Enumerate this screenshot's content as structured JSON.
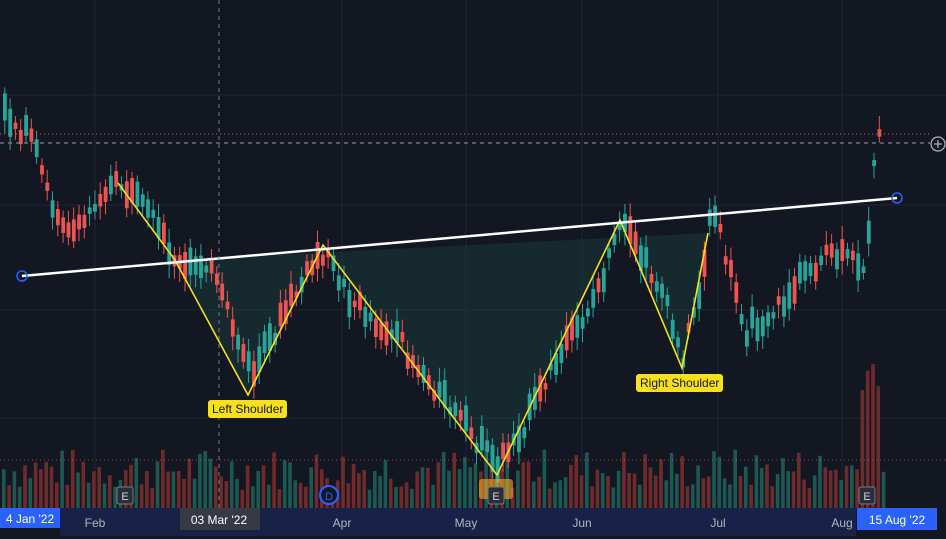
{
  "chart_data": {
    "type": "candlestick",
    "title": "",
    "xlabel": "",
    "ylabel": "",
    "x_ticks": [
      "Feb",
      "Apr",
      "May",
      "Jun",
      "Jul",
      "Aug"
    ],
    "crosshair_date": "03 Mar '22",
    "range_start": "4 Jan '22",
    "range_end": "15 Aug '22",
    "annotations": [
      "Left Shoulder",
      "Right Shoulder"
    ],
    "event_markers": [
      "E",
      "D",
      "E",
      "E"
    ],
    "pattern": "inverse head and shoulders",
    "colors": {
      "background": "#131722",
      "up": "#26a69a",
      "down": "#ef5350",
      "pattern_line": "#f9e01c",
      "neckline": "#ffffff",
      "crosshair_label": "#2962ff"
    }
  }
}
